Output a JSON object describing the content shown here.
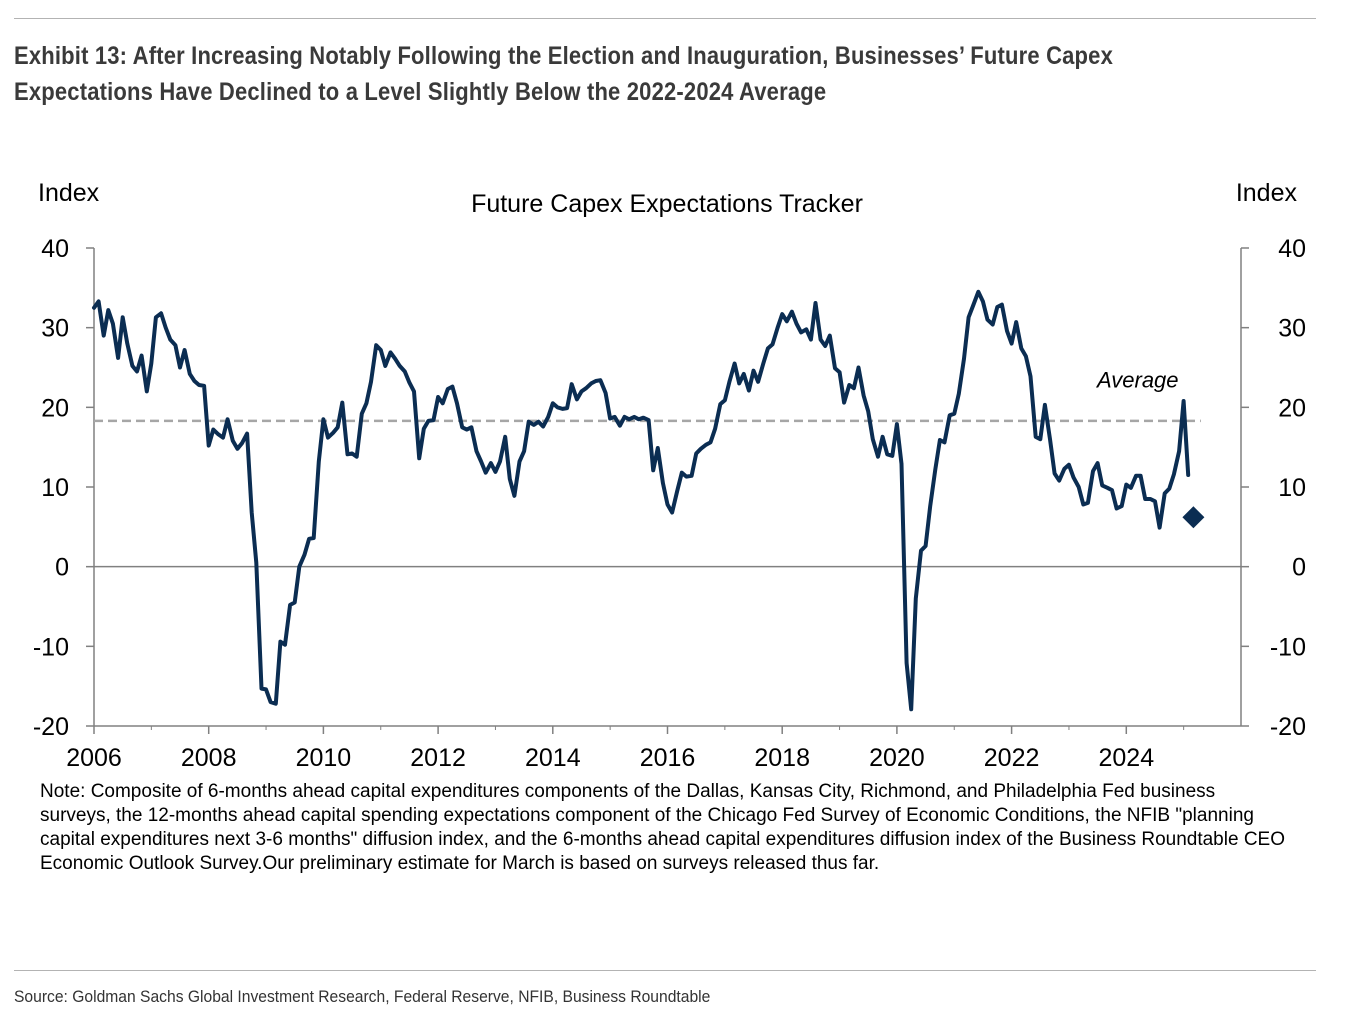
{
  "exhibit": {
    "title_line1": "Exhibit 13: After Increasing Notably Following the Election and Inauguration, Businesses’ Future Capex",
    "title_line2": "Expectations Have Declined to a Level Slightly Below the 2022-2024 Average"
  },
  "note": "Note: Composite of 6-months ahead capital expenditures components of the Dallas, Kansas City, Richmond, and Philadelphia Fed business surveys, the 12-months ahead capital spending expectations component of the Chicago Fed Survey of Economic Conditions, the NFIB \"planning capital expenditures next 3-6 months\" diffusion index, and the 6-months ahead capital expenditures diffusion index of the Business Roundtable CEO Economic Outlook Survey.Our preliminary estimate for March is based on surveys released thus far.",
  "source": "Source: Goldman Sachs Global Investment Research, Federal Reserve, NFIB, Business Roundtable",
  "colors": {
    "line": "#0b2d52",
    "average": "#a6a6a6",
    "axis": "#808080"
  },
  "chart_data": {
    "type": "line",
    "title": "Future Capex Expectations Tracker",
    "ylabel_left": "Index",
    "ylabel_right": "Index",
    "xlim": [
      2006.0,
      2026.0
    ],
    "ylim": [
      -20,
      40
    ],
    "x_ticks": [
      2006,
      2008,
      2010,
      2012,
      2014,
      2016,
      2018,
      2020,
      2022,
      2024
    ],
    "y_ticks": [
      40,
      30,
      20,
      10,
      0,
      -10,
      -20
    ],
    "average": {
      "label": "Average",
      "value": 18.3,
      "x_start": 2006.0,
      "x_end": 2025.3
    },
    "preliminary_point": {
      "x": 2025.17,
      "y": 6.2
    },
    "series": [
      {
        "name": "Future Capex Expectations Tracker",
        "x": [
          2006.0,
          2006.08,
          2006.17,
          2006.25,
          2006.33,
          2006.42,
          2006.5,
          2006.58,
          2006.67,
          2006.75,
          2006.83,
          2006.92,
          2007.0,
          2007.08,
          2007.17,
          2007.25,
          2007.33,
          2007.42,
          2007.5,
          2007.58,
          2007.67,
          2007.75,
          2007.83,
          2007.92,
          2008.0,
          2008.08,
          2008.17,
          2008.25,
          2008.33,
          2008.42,
          2008.5,
          2008.58,
          2008.67,
          2008.75,
          2008.83,
          2008.92,
          2009.0,
          2009.08,
          2009.17,
          2009.25,
          2009.33,
          2009.42,
          2009.5,
          2009.58,
          2009.67,
          2009.75,
          2009.83,
          2009.92,
          2010.0,
          2010.08,
          2010.17,
          2010.25,
          2010.33,
          2010.42,
          2010.5,
          2010.58,
          2010.67,
          2010.75,
          2010.83,
          2010.92,
          2011.0,
          2011.08,
          2011.17,
          2011.25,
          2011.33,
          2011.42,
          2011.5,
          2011.58,
          2011.67,
          2011.75,
          2011.83,
          2011.92,
          2012.0,
          2012.08,
          2012.17,
          2012.25,
          2012.33,
          2012.42,
          2012.5,
          2012.58,
          2012.67,
          2012.75,
          2012.83,
          2012.92,
          2013.0,
          2013.08,
          2013.17,
          2013.25,
          2013.33,
          2013.42,
          2013.5,
          2013.58,
          2013.67,
          2013.75,
          2013.83,
          2013.92,
          2014.0,
          2014.08,
          2014.17,
          2014.25,
          2014.33,
          2014.42,
          2014.5,
          2014.58,
          2014.67,
          2014.75,
          2014.83,
          2014.92,
          2015.0,
          2015.08,
          2015.17,
          2015.25,
          2015.33,
          2015.42,
          2015.5,
          2015.58,
          2015.67,
          2015.75,
          2015.83,
          2015.92,
          2016.0,
          2016.08,
          2016.17,
          2016.25,
          2016.33,
          2016.42,
          2016.5,
          2016.58,
          2016.67,
          2016.75,
          2016.83,
          2016.92,
          2017.0,
          2017.08,
          2017.17,
          2017.25,
          2017.33,
          2017.42,
          2017.5,
          2017.58,
          2017.67,
          2017.75,
          2017.83,
          2017.92,
          2018.0,
          2018.08,
          2018.17,
          2018.25,
          2018.33,
          2018.42,
          2018.5,
          2018.58,
          2018.67,
          2018.75,
          2018.83,
          2018.92,
          2019.0,
          2019.08,
          2019.17,
          2019.25,
          2019.33,
          2019.42,
          2019.5,
          2019.58,
          2019.67,
          2019.75,
          2019.83,
          2019.92,
          2020.0,
          2020.08,
          2020.17,
          2020.25,
          2020.33,
          2020.42,
          2020.5,
          2020.58,
          2020.67,
          2020.75,
          2020.83,
          2020.92,
          2021.0,
          2021.08,
          2021.17,
          2021.25,
          2021.33,
          2021.42,
          2021.5,
          2021.58,
          2021.67,
          2021.75,
          2021.83,
          2021.92,
          2022.0,
          2022.08,
          2022.17,
          2022.25,
          2022.33,
          2022.42,
          2022.5,
          2022.58,
          2022.67,
          2022.75,
          2022.83,
          2022.92,
          2023.0,
          2023.08,
          2023.17,
          2023.25,
          2023.33,
          2023.42,
          2023.5,
          2023.58,
          2023.67,
          2023.75,
          2023.83,
          2023.92,
          2024.0,
          2024.08,
          2024.17,
          2024.25,
          2024.33,
          2024.42,
          2024.5,
          2024.58,
          2024.67,
          2024.75,
          2024.83,
          2024.92,
          2025.0,
          2025.08
        ],
        "values": [
          32.5,
          33.3,
          29.0,
          32.2,
          30.5,
          26.2,
          31.3,
          28.0,
          25.2,
          24.5,
          26.5,
          22.0,
          25.5,
          31.3,
          31.8,
          30.0,
          28.5,
          27.8,
          25.0,
          27.2,
          24.2,
          23.3,
          22.8,
          22.7,
          15.2,
          17.2,
          16.6,
          16.2,
          18.5,
          15.8,
          14.8,
          15.5,
          16.7,
          6.8,
          0.5,
          -15.3,
          -15.4,
          -17.0,
          -17.2,
          -9.4,
          -9.8,
          -4.8,
          -4.5,
          0.0,
          1.5,
          3.5,
          3.6,
          13.2,
          18.5,
          16.2,
          16.8,
          17.5,
          20.6,
          14.1,
          14.2,
          13.8,
          19.2,
          20.5,
          23.2,
          27.8,
          27.2,
          25.2,
          26.9,
          26.1,
          25.2,
          24.5,
          23.1,
          22.0,
          13.6,
          17.3,
          18.3,
          18.4,
          21.3,
          20.5,
          22.3,
          22.6,
          20.5,
          17.5,
          17.2,
          17.5,
          14.5,
          13.2,
          11.8,
          13.0,
          11.9,
          13.2,
          16.3,
          11.0,
          8.9,
          13.2,
          14.5,
          18.2,
          17.8,
          18.2,
          17.6,
          18.8,
          20.5,
          20.0,
          19.8,
          19.9,
          22.9,
          21.0,
          22.0,
          22.4,
          23.0,
          23.3,
          23.4,
          21.8,
          18.6,
          18.8,
          17.7,
          18.8,
          18.5,
          18.8,
          18.5,
          18.7,
          18.4,
          12.1,
          14.9,
          10.5,
          7.8,
          6.8,
          9.5,
          11.8,
          11.3,
          11.4,
          14.2,
          14.8,
          15.3,
          15.6,
          17.3,
          20.4,
          20.9,
          23.2,
          25.5,
          23.0,
          24.2,
          22.1,
          24.6,
          23.2,
          25.5,
          27.4,
          27.9,
          30.0,
          31.7,
          30.8,
          32.0,
          30.5,
          29.4,
          29.8,
          28.5,
          33.1,
          28.5,
          27.7,
          29.0,
          24.9,
          24.4,
          20.6,
          22.8,
          22.4,
          25.0,
          21.5,
          19.5,
          16.0,
          13.8,
          16.3,
          14.1,
          13.9,
          17.9,
          12.9,
          -12.1,
          -17.9,
          -4.0,
          2.0,
          2.6,
          7.6,
          12.2,
          15.9,
          15.6,
          19.0,
          19.2,
          21.7,
          26.1,
          31.3,
          32.8,
          34.5,
          33.3,
          31.0,
          30.4,
          32.6,
          32.9,
          29.6,
          28.0,
          30.7,
          27.4,
          26.4,
          23.9,
          16.3,
          16.0,
          20.3,
          16.0,
          11.7,
          10.8,
          12.3,
          12.8,
          11.2,
          10.0,
          7.8,
          8.0,
          12.0,
          13.0,
          10.2,
          9.9,
          9.6,
          7.3,
          7.6,
          10.3,
          9.9,
          11.4,
          11.4,
          8.5,
          8.5,
          8.2,
          4.9,
          9.2,
          9.8,
          11.6,
          14.5,
          20.8,
          11.5
        ]
      }
    ]
  }
}
